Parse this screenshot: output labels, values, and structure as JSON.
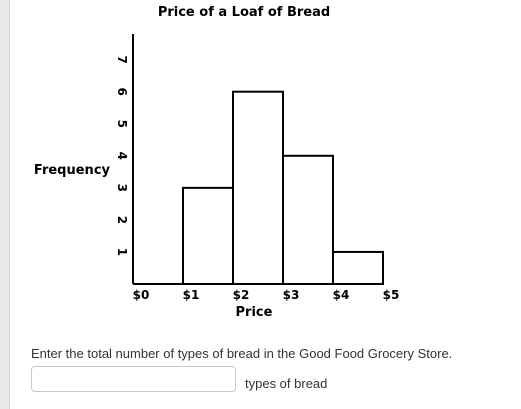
{
  "chart_data": {
    "type": "histogram",
    "title": "Price of a Loaf of Bread",
    "xlabel": "Price",
    "ylabel": "Frequency",
    "x_ticks": [
      "$0",
      "$1",
      "$2",
      "$3",
      "$4",
      "$5"
    ],
    "y_ticks": [
      "1",
      "2",
      "3",
      "4",
      "5",
      "6",
      "7"
    ],
    "bins": [
      {
        "from": 1,
        "to": 2,
        "value": 3
      },
      {
        "from": 2,
        "to": 3,
        "value": 6
      },
      {
        "from": 3,
        "to": 4,
        "value": 4
      },
      {
        "from": 4,
        "to": 5,
        "value": 1
      }
    ],
    "xlim": [
      0,
      5
    ],
    "ylim": [
      0,
      7.8
    ],
    "grid": false
  },
  "question": {
    "prompt": "Enter the total number of types of bread in the Good Food Grocery Store.",
    "input_value": "",
    "unit_label": "types of bread"
  },
  "colors": {
    "bar_fill": "#ffffff",
    "bar_stroke": "#000000",
    "text": "#333333"
  }
}
